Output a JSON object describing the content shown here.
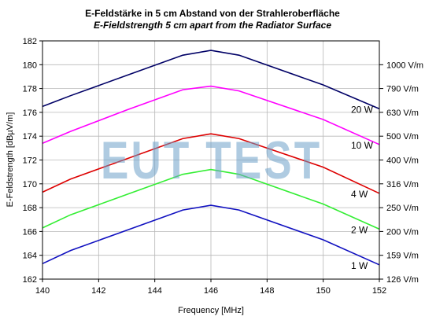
{
  "titles": {
    "line1": "E-Feldstärke in 5 cm Abstand von der Strahleroberfläche",
    "line2": "E-Fieldstrength 5 cm apart from the Radiator Surface"
  },
  "watermark": "EUT TEST",
  "chart_data": {
    "type": "line",
    "title": "E-Feldstärke in 5 cm Abstand von der Strahleroberfläche",
    "subtitle": "E-Fieldstrength 5 cm apart from the Radiator Surface",
    "xlabel": "Frequency [MHz]",
    "ylabel": "E-Feldstrength [dBµV/m]",
    "xlim": [
      140,
      152
    ],
    "ylim": [
      162,
      182
    ],
    "xticks": [
      "140",
      "142",
      "144",
      "146",
      "148",
      "150",
      "152"
    ],
    "yticks": [
      "162",
      "164",
      "166",
      "168",
      "170",
      "172",
      "174",
      "176",
      "178",
      "180",
      "182"
    ],
    "right_axis_ticks": [
      {
        "value": 180.0,
        "label": "1000 V/m"
      },
      {
        "value": 178.0,
        "label": "790 V/m"
      },
      {
        "value": 176.0,
        "label": "630 V/m"
      },
      {
        "value": 174.0,
        "label": "500 V/m"
      },
      {
        "value": 172.0,
        "label": "400 V/m"
      },
      {
        "value": 170.0,
        "label": "316 V/m"
      },
      {
        "value": 168.0,
        "label": "250 V/m"
      },
      {
        "value": 166.0,
        "label": "200 V/m"
      },
      {
        "value": 164.0,
        "label": "159 V/m"
      },
      {
        "value": 162.0,
        "label": "126 V/m"
      }
    ],
    "grid": true,
    "x": [
      140,
      141,
      143,
      145,
      146,
      147,
      150,
      152
    ],
    "series": [
      {
        "name": "20 W",
        "color": "#000066",
        "values": [
          176.5,
          177.4,
          179.1,
          180.8,
          181.2,
          180.8,
          178.3,
          176.3
        ]
      },
      {
        "name": "10 W",
        "color": "#ff00ff",
        "values": [
          173.4,
          174.4,
          176.2,
          177.9,
          178.2,
          177.8,
          175.4,
          173.3
        ]
      },
      {
        "name": "4 W",
        "color": "#dd0000",
        "values": [
          169.3,
          170.4,
          172.1,
          173.8,
          174.2,
          173.8,
          171.4,
          169.2
        ]
      },
      {
        "name": "2 W",
        "color": "#33ee33",
        "values": [
          166.3,
          167.4,
          169.1,
          170.8,
          171.2,
          170.8,
          168.3,
          166.2
        ]
      },
      {
        "name": "1 W",
        "color": "#1010c0",
        "values": [
          163.3,
          164.4,
          166.1,
          167.8,
          168.2,
          167.8,
          165.3,
          163.2
        ]
      }
    ]
  }
}
